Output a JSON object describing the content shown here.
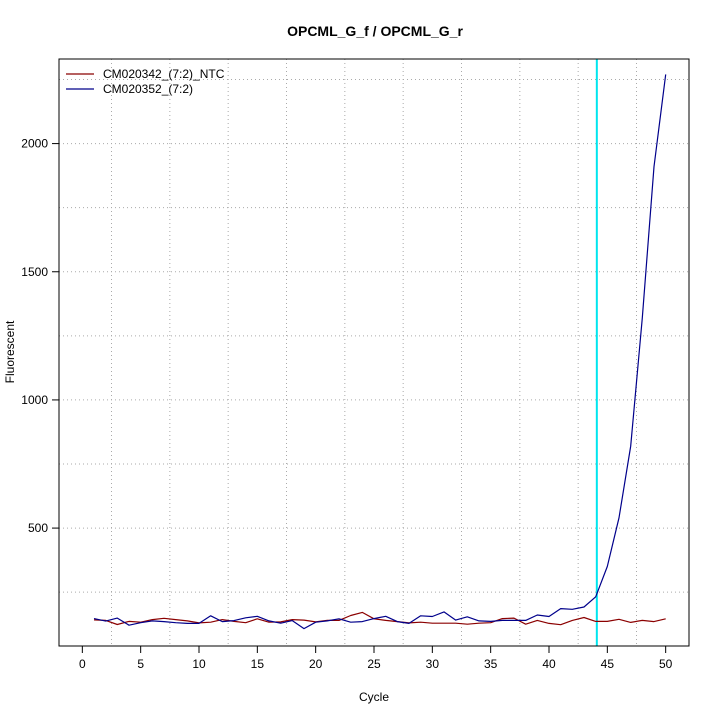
{
  "chart_data": {
    "type": "line",
    "title": "OPCML_G_f / OPCML_G_r",
    "xlabel": "Cycle",
    "ylabel": "Fluorescent",
    "xlim": [
      -2,
      52
    ],
    "ylim": [
      40,
      2330
    ],
    "x_ticks": [
      0,
      5,
      10,
      15,
      20,
      25,
      30,
      35,
      40,
      45,
      50
    ],
    "y_ticks": [
      500,
      1000,
      1500,
      2000
    ],
    "grid": "dotted",
    "legend_position": "top-left",
    "threshold_cycle": 44.1,
    "x": [
      1,
      2,
      3,
      4,
      5,
      6,
      7,
      8,
      9,
      10,
      11,
      12,
      13,
      14,
      15,
      16,
      17,
      18,
      19,
      20,
      21,
      22,
      23,
      24,
      25,
      26,
      27,
      28,
      29,
      30,
      31,
      32,
      33,
      34,
      35,
      36,
      37,
      38,
      39,
      40,
      41,
      42,
      43,
      44,
      45,
      46,
      47,
      48,
      49,
      50
    ],
    "series": [
      {
        "name": "CM020342_(7:2)_NTC",
        "color": "#8b0000",
        "values": [
          142,
          140,
          124,
          136,
          133,
          143,
          148,
          143,
          138,
          130,
          133,
          143,
          136,
          131,
          146,
          133,
          134,
          143,
          141,
          134,
          140,
          140,
          159,
          171,
          146,
          140,
          135,
          130,
          133,
          129,
          129,
          129,
          125,
          129,
          131,
          147,
          149,
          125,
          140,
          128,
          123,
          140,
          151,
          136,
          136,
          144,
          132,
          140,
          135,
          146
        ]
      },
      {
        "name": "CM020352_(7:2)",
        "color": "#00008b",
        "values": [
          147,
          137,
          149,
          121,
          131,
          138,
          135,
          131,
          128,
          128,
          158,
          135,
          139,
          150,
          156,
          138,
          129,
          139,
          108,
          133,
          138,
          146,
          133,
          135,
          147,
          156,
          135,
          128,
          158,
          155,
          173,
          141,
          154,
          138,
          136,
          140,
          140,
          140,
          161,
          155,
          186,
          183,
          192,
          232,
          350,
          540,
          820,
          1320,
          1910,
          2270
        ]
      }
    ]
  }
}
